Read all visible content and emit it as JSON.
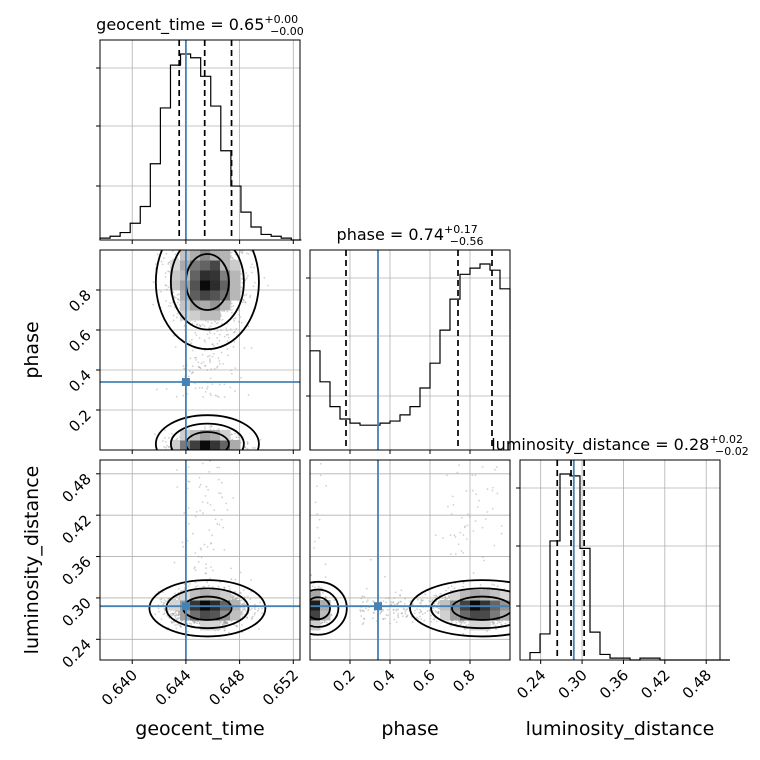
{
  "chart_data": {
    "type": "corner",
    "parameters": [
      "geocent_time",
      "phase",
      "luminosity_distance"
    ],
    "truth": {
      "geocent_time": 0.644,
      "phase": 0.34,
      "luminosity_distance": 0.288
    },
    "titles": [
      {
        "param": "geocent_time",
        "main": "geocent_time = 0.65",
        "sup": "+0.00",
        "sub": "−0.00"
      },
      {
        "param": "phase",
        "main": "phase = 0.74",
        "sup": "+0.17",
        "sub": "−0.56"
      },
      {
        "param": "luminosity_distance",
        "main": "luminosity_distance = 0.28",
        "sup": "+0.02",
        "sub": "−0.02"
      }
    ],
    "ranges": {
      "geocent_time": [
        0.6376,
        0.6525
      ],
      "phase": [
        0.0,
        1.0
      ],
      "luminosity_distance": [
        0.21,
        0.5
      ]
    },
    "ticks": {
      "geocent_time": [
        "0.640",
        "0.644",
        "0.648",
        "0.652"
      ],
      "phase": [
        "0.2",
        "0.4",
        "0.6",
        "0.8"
      ],
      "luminosity_distance": [
        "0.24",
        "0.30",
        "0.36",
        "0.42",
        "0.48"
      ]
    },
    "histograms": {
      "geocent_time": {
        "edges_start": 0.6376,
        "bin_width": 0.00075,
        "counts": [
          1,
          2,
          4,
          9,
          18,
          41,
          71,
          94,
          100,
          98,
          88,
          72,
          48,
          29,
          15,
          7,
          3,
          2,
          1,
          0
        ],
        "quantiles": [
          0.6435,
          0.6454,
          0.6474
        ]
      },
      "phase": {
        "edges_start": 0.0,
        "bin_width": 0.05,
        "counts": [
          48,
          33,
          21,
          15,
          13,
          12,
          12,
          13,
          14,
          17,
          21,
          30,
          42,
          58,
          73,
          85,
          88,
          90,
          87,
          78
        ],
        "quantiles": [
          0.18,
          0.74,
          0.91
        ]
      },
      "luminosity_distance": {
        "edges_start": 0.2245,
        "bin_width": 0.0145,
        "counts": [
          4,
          14,
          64,
          100,
          99,
          60,
          15,
          3,
          1,
          1,
          0,
          1,
          1,
          0,
          0,
          0,
          0,
          0,
          0,
          0
        ],
        "quantiles": [
          0.264,
          0.284,
          0.303
        ]
      }
    }
  }
}
